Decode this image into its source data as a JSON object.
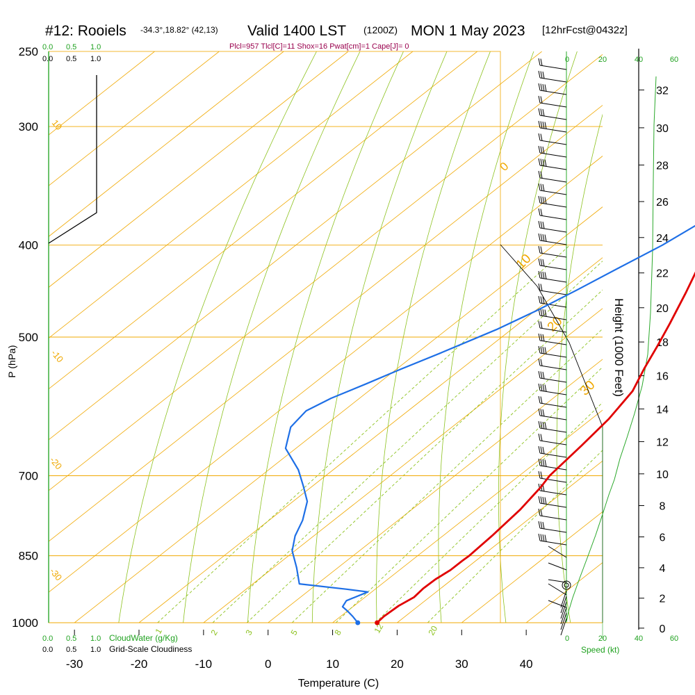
{
  "header": {
    "station": "#12: Rooiels",
    "coords": "-34.3°,18.82° (42,13)",
    "valid": "Valid 1400 LST",
    "utc": "(1200Z)",
    "date": "MON 1 May 2023",
    "forecast": "[12hrFcst@0432z]",
    "indices": "Plcl=957 Tlcl[C]=11 Shox=16 Pwat[cm]=1 Cape[J]= 0"
  },
  "colors": {
    "temp": "#e00000",
    "dew": "#1e6fe6",
    "isotherm": "#f0a800",
    "dry_adiabat": "#8cc21e",
    "green_text": "#1fa11f",
    "magenta_text": "#99004d"
  },
  "scales": {
    "cloud_top_green": [
      "0.0",
      "0.5",
      "1.0"
    ],
    "cloud_top_black": [
      "0.0",
      "0.5",
      "1.0"
    ],
    "cloud_bottom_green": [
      "0.0",
      "0.5",
      "1.0"
    ],
    "cloud_bottom_black": [
      "0.0",
      "0.5",
      "1.0"
    ],
    "cloudwater_label": "CloudWater (g/Kg)",
    "cloudiness_label": "Grid-Scale Cloudiness",
    "speed_ticks": [
      "0",
      "20",
      "40",
      "60"
    ],
    "speed_label": "Speed (kt)"
  },
  "chart_data": {
    "type": "line",
    "title": "#12: Rooiels Valid 1400 LST (1200Z) MON 1 May 2023",
    "xlabel": "Temperature (C)",
    "ylabel": "P (hPa)",
    "y2label": "Height (1000 Feet)",
    "xlim": [
      -34,
      36
    ],
    "x_ticks": [
      -30,
      -20,
      -10,
      0,
      10,
      20,
      30,
      40
    ],
    "pressure_ticks": [
      1000,
      850,
      700,
      500,
      400,
      300,
      250
    ],
    "height_ticks": [
      0,
      2,
      4,
      6,
      8,
      10,
      12,
      14,
      16,
      18,
      20,
      22,
      24,
      26,
      28,
      30,
      32
    ],
    "isotherm_labels": [
      "10",
      "0",
      "-10",
      "-20",
      "-30",
      "10",
      "20",
      "30"
    ],
    "mixing_ratio_labels": [
      "1",
      "2",
      "3",
      "5",
      "8",
      "12",
      "20"
    ],
    "series": [
      {
        "name": "Temperature",
        "points": [
          [
            16.9,
            1000
          ],
          [
            16.7,
            985
          ],
          [
            16.9,
            960
          ],
          [
            17.6,
            940
          ],
          [
            17.3,
            920
          ],
          [
            17.4,
            900
          ],
          [
            17.9,
            880
          ],
          [
            17.9,
            860
          ],
          [
            18.0,
            850
          ],
          [
            17.6,
            810
          ],
          [
            16.8,
            760
          ],
          [
            15.6,
            720
          ],
          [
            14.7,
            700
          ],
          [
            13.7,
            650
          ],
          [
            12.7,
            610
          ],
          [
            10.9,
            570
          ],
          [
            8.3,
            540
          ],
          [
            5.8,
            510
          ],
          [
            3.4,
            484
          ],
          [
            -0.2,
            449
          ],
          [
            -3.8,
            418
          ],
          [
            -6.7,
            397
          ],
          [
            -8.8,
            379
          ],
          [
            -10.8,
            363
          ],
          [
            -12.1,
            348
          ],
          [
            -13.9,
            334
          ],
          [
            -16.6,
            319
          ],
          [
            -19.5,
            305
          ],
          [
            -23.0,
            290
          ],
          [
            -27.6,
            272
          ]
        ]
      },
      {
        "name": "Dewpoint",
        "points": [
          [
            13.9,
            1000
          ],
          [
            11.9,
            985
          ],
          [
            10.0,
            972
          ],
          [
            8.4,
            962
          ],
          [
            7.8,
            948
          ],
          [
            9.4,
            928
          ],
          [
            5.6,
            922
          ],
          [
            -2.8,
            910
          ],
          [
            -6.4,
            875
          ],
          [
            -10.4,
            840
          ],
          [
            -12.9,
            810
          ],
          [
            -14.8,
            780
          ],
          [
            -17.8,
            745
          ],
          [
            -21.4,
            718
          ],
          [
            -25.4,
            690
          ],
          [
            -31.6,
            655
          ],
          [
            -35.0,
            622
          ],
          [
            -35.8,
            598
          ],
          [
            -34.4,
            580
          ],
          [
            -31.8,
            560
          ],
          [
            -29.4,
            541
          ],
          [
            -26.4,
            520
          ],
          [
            -22.3,
            491
          ],
          [
            -19.8,
            469
          ],
          [
            -17.6,
            446
          ],
          [
            -15.4,
            422
          ],
          [
            -13.2,
            400
          ],
          [
            -11.6,
            377
          ],
          [
            -11.0,
            358
          ],
          [
            -10.6,
            338
          ],
          [
            -11.4,
            318
          ],
          [
            -14.6,
            296
          ],
          [
            -18.6,
            272
          ]
        ]
      }
    ]
  }
}
